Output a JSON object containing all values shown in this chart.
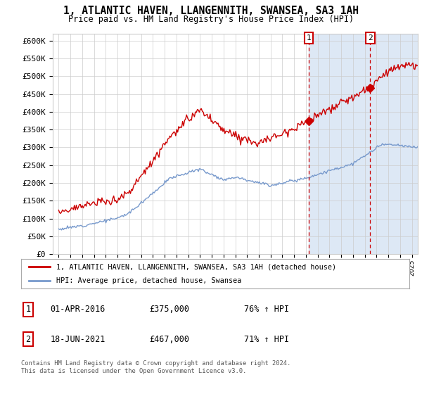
{
  "title": "1, ATLANTIC HAVEN, LLANGENNITH, SWANSEA, SA3 1AH",
  "subtitle": "Price paid vs. HM Land Registry's House Price Index (HPI)",
  "ylim": [
    0,
    620000
  ],
  "yticks": [
    0,
    50000,
    100000,
    150000,
    200000,
    250000,
    300000,
    350000,
    400000,
    450000,
    500000,
    550000,
    600000
  ],
  "ytick_labels": [
    "£0",
    "£50K",
    "£100K",
    "£150K",
    "£200K",
    "£250K",
    "£300K",
    "£350K",
    "£400K",
    "£450K",
    "£500K",
    "£550K",
    "£600K"
  ],
  "hpi_color": "#7799cc",
  "price_color": "#cc0000",
  "sale1_date": 2016.25,
  "sale1_price": 375000,
  "sale2_date": 2021.46,
  "sale2_price": 467000,
  "legend_price_label": "1, ATLANTIC HAVEN, LLANGENNITH, SWANSEA, SA3 1AH (detached house)",
  "legend_hpi_label": "HPI: Average price, detached house, Swansea",
  "note1_date": "01-APR-2016",
  "note1_price": "£375,000",
  "note1_hpi": "76% ↑ HPI",
  "note2_date": "18-JUN-2021",
  "note2_price": "£467,000",
  "note2_hpi": "71% ↑ HPI",
  "footer": "Contains HM Land Registry data © Crown copyright and database right 2024.\nThis data is licensed under the Open Government Licence v3.0.",
  "xmin": 1994.5,
  "xmax": 2025.5,
  "shade_color": "#dde8f5",
  "grid_color": "#cccccc"
}
